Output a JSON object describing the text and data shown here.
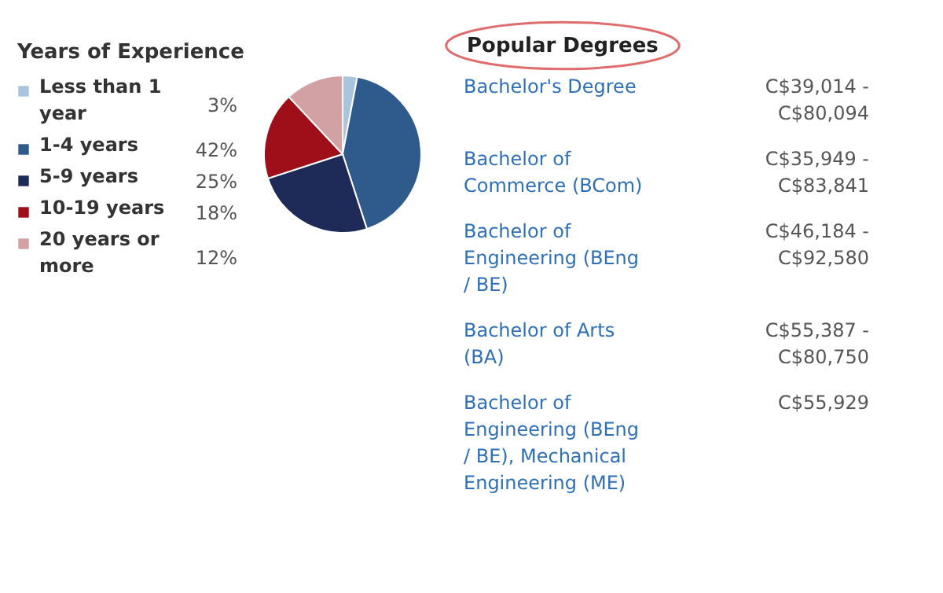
{
  "chart_data": [
    {
      "type": "pie",
      "title": "Years of Experience",
      "categories": [
        "Less than 1 year",
        "1-4 years",
        "5-9 years",
        "10-19 years",
        "20 years or more"
      ],
      "values": [
        3,
        42,
        25,
        18,
        12
      ],
      "value_labels": [
        "3%",
        "42%",
        "25%",
        "18%",
        "12%"
      ],
      "colors": [
        "#a9c5de",
        "#2e5b8c",
        "#1e2a58",
        "#9e0f19",
        "#d2a1a3"
      ],
      "legend": "left"
    },
    {
      "type": "other",
      "title": "Popular Degrees",
      "annotations": [
        "Bachelor's Degree",
        "C$39,014 - C$80,094",
        "Bachelor of Commerce (BCom)",
        "C$35,949 - C$83,841",
        "Bachelor of Engineering (BEng / BE)",
        "C$46,184 - C$92,580",
        "Bachelor of Arts (BA)",
        "C$55,387 - C$80,750",
        "Bachelor of Engineering (BEng / BE), Mechanical Engineering (ME)",
        "C$55,929"
      ]
    }
  ]
}
